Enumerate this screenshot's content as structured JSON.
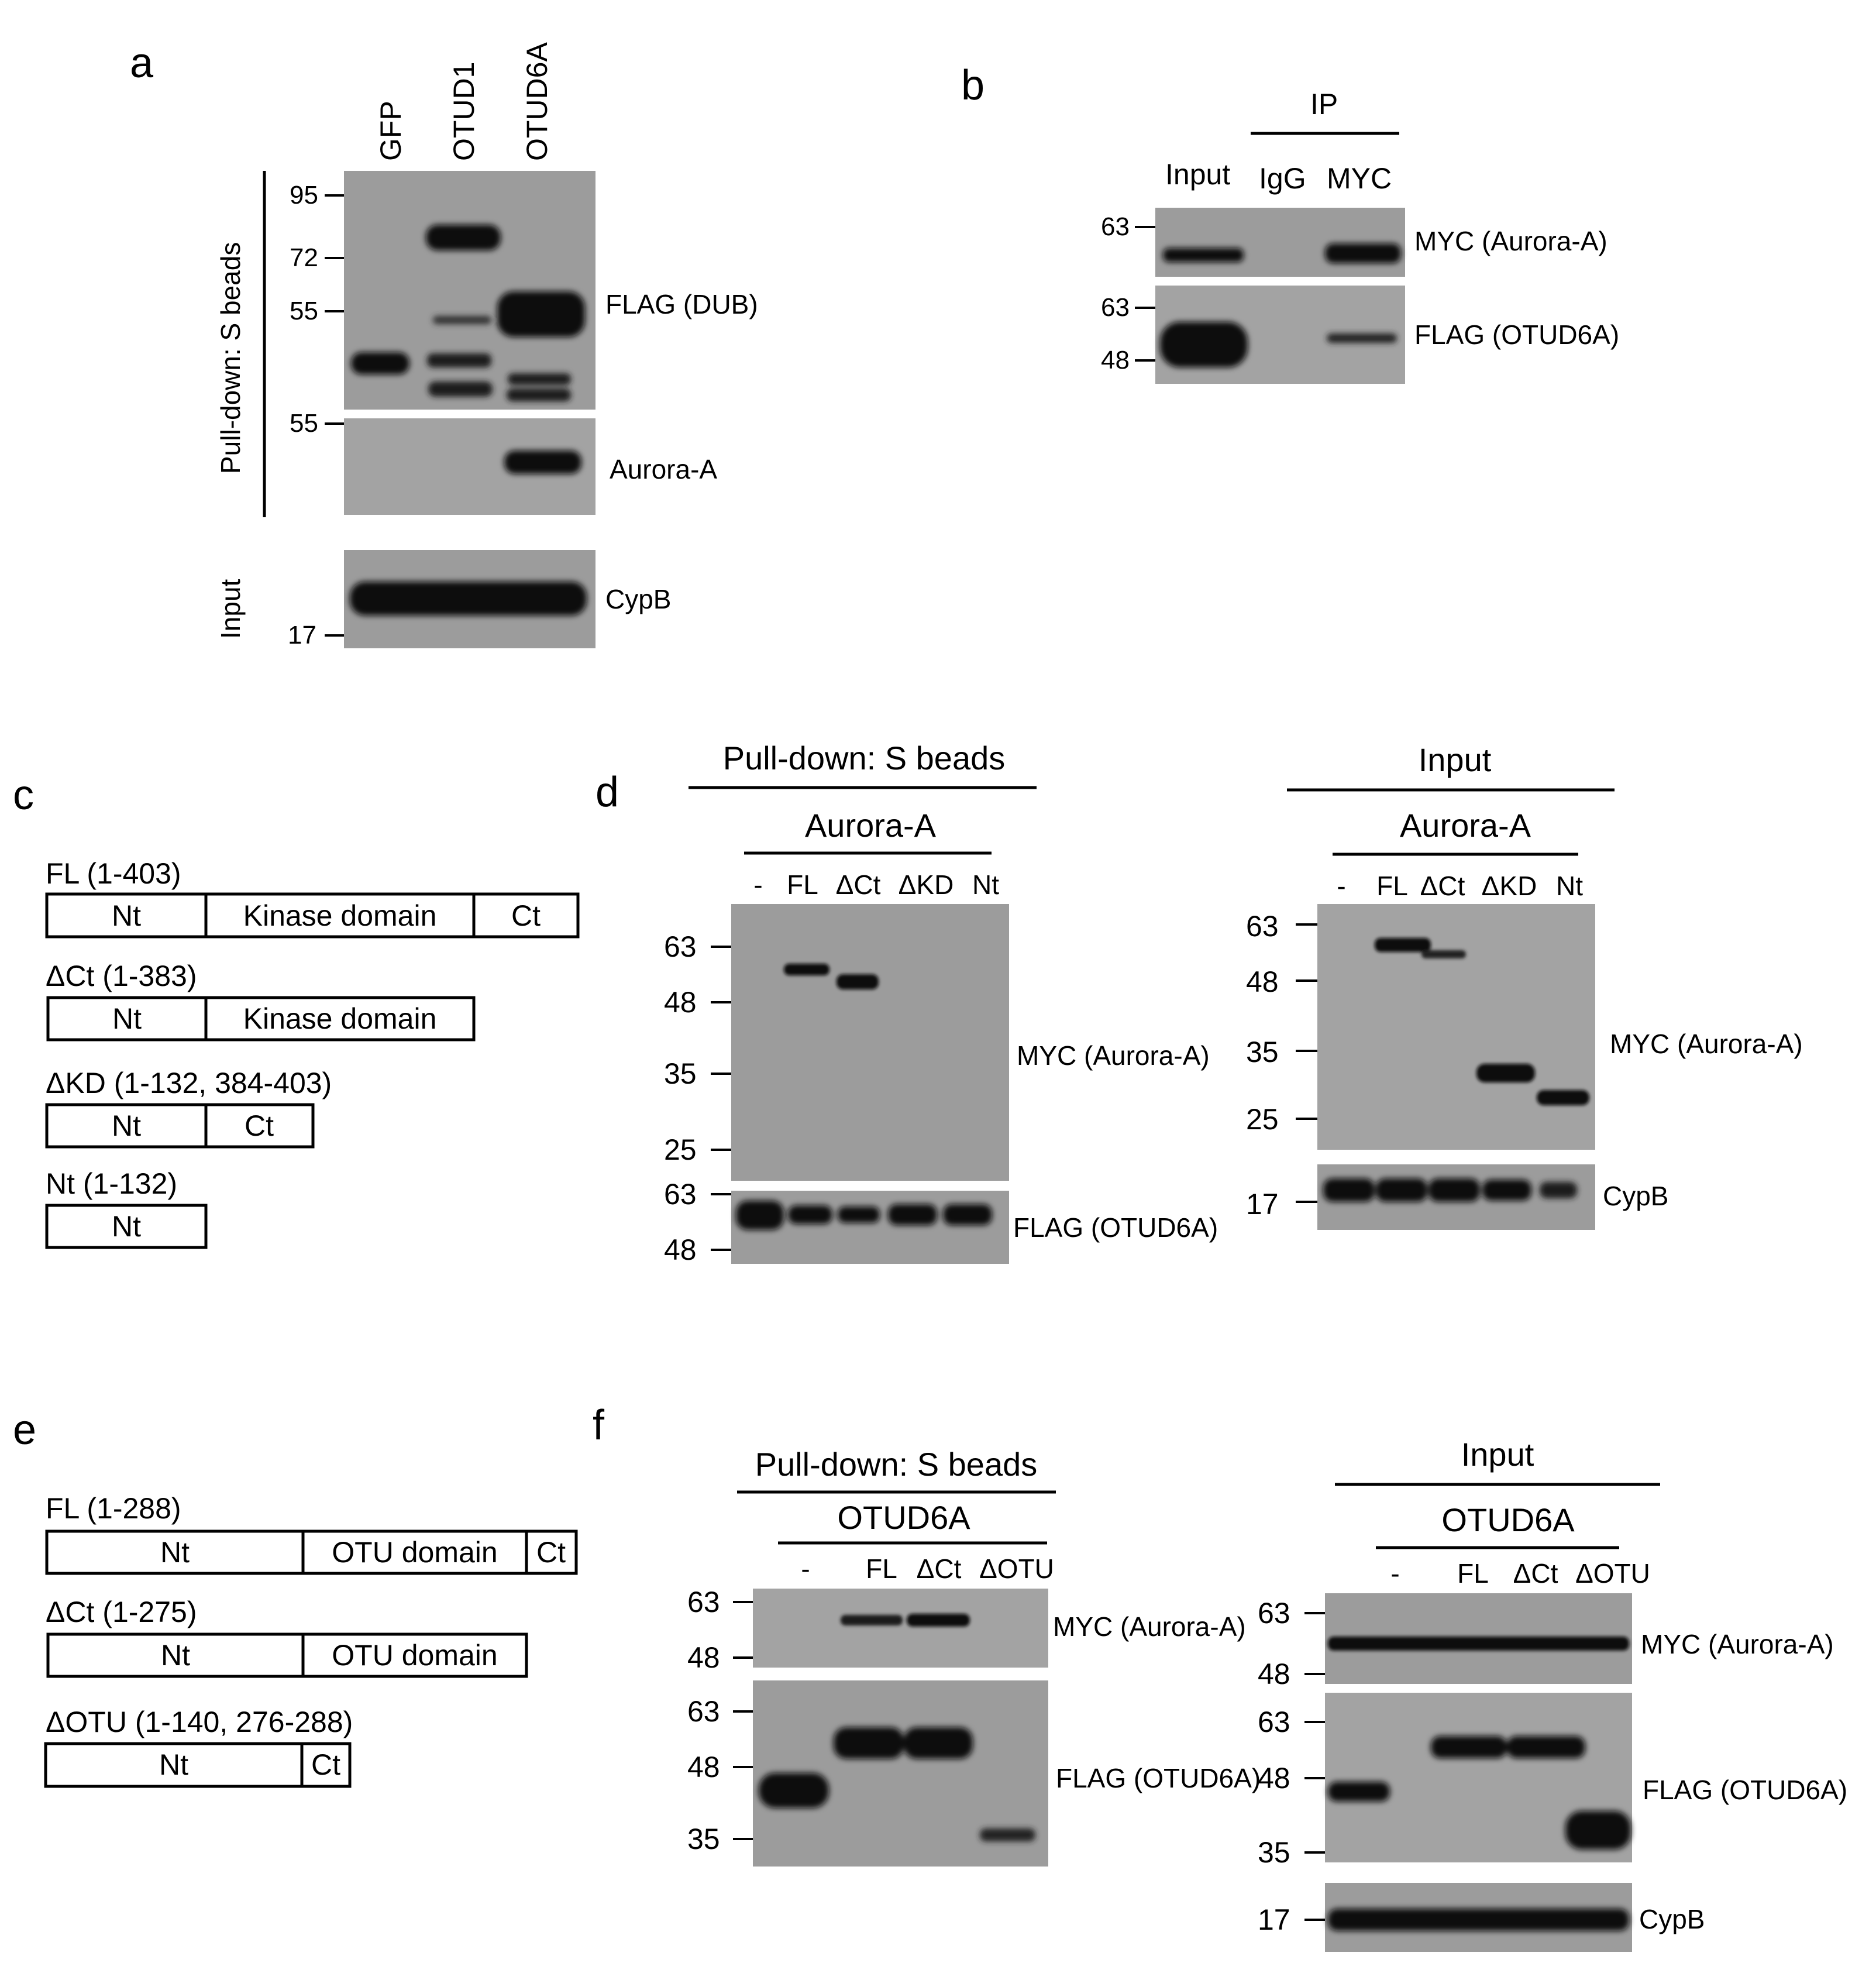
{
  "panels": {
    "a": {
      "label": "a",
      "lanes": [
        "GFP",
        "OTUD1",
        "OTUD6A"
      ],
      "side_label": "Pull-down: S beads",
      "input_label": "Input",
      "mw_top": [
        "95",
        "72",
        "55"
      ],
      "mw_mid": "55",
      "mw_bottom": "17",
      "blots": [
        "FLAG (DUB)",
        "Aurora-A",
        "CypB"
      ]
    },
    "b": {
      "label": "b",
      "ip_label": "IP",
      "lanes": [
        "Input",
        "IgG",
        "MYC"
      ],
      "mw_top": "63",
      "mw_bottom": [
        "63",
        "48"
      ],
      "blots": [
        "MYC (Aurora-A)",
        "FLAG (OTUD6A)"
      ]
    },
    "c": {
      "label": "c",
      "constructs": [
        {
          "name": "FL (1-403)",
          "segments": [
            "Nt",
            "Kinase domain",
            "Ct"
          ]
        },
        {
          "name": "ΔCt (1-383)",
          "segments": [
            "Nt",
            "Kinase domain"
          ]
        },
        {
          "name": "ΔKD (1-132, 384-403)",
          "segments": [
            "Nt",
            "Ct"
          ]
        },
        {
          "name": "Nt (1-132)",
          "segments": [
            "Nt"
          ]
        }
      ]
    },
    "d": {
      "label": "d",
      "left": {
        "header": "Pull-down: S beads",
        "subheader": "Aurora-A",
        "lanes": [
          "-",
          "FL",
          "ΔCt",
          "ΔKD",
          "Nt"
        ],
        "mw_top": [
          "63",
          "48",
          "35",
          "25"
        ],
        "mw_bottom": [
          "63",
          "48"
        ],
        "blots": [
          "MYC (Aurora-A)",
          "FLAG (OTUD6A)"
        ]
      },
      "right": {
        "header": "Input",
        "subheader": "Aurora-A",
        "lanes": [
          "-",
          "FL",
          "ΔCt",
          "ΔKD",
          "Nt"
        ],
        "mw_top": [
          "63",
          "48",
          "35",
          "25"
        ],
        "mw_bottom": "17",
        "blots": [
          "MYC (Aurora-A)",
          "CypB"
        ]
      }
    },
    "e": {
      "label": "e",
      "constructs": [
        {
          "name": "FL (1-288)",
          "segments": [
            "Nt",
            "OTU domain",
            "Ct"
          ]
        },
        {
          "name": "ΔCt (1-275)",
          "segments": [
            "Nt",
            "OTU domain"
          ]
        },
        {
          "name": "ΔOTU (1-140, 276-288)",
          "segments": [
            "Nt",
            "Ct"
          ]
        }
      ]
    },
    "f": {
      "label": "f",
      "left": {
        "header": "Pull-down: S beads",
        "subheader": "OTUD6A",
        "lanes": [
          "-",
          "FL",
          "ΔCt",
          "ΔOTU"
        ],
        "mw_top": [
          "63",
          "48"
        ],
        "mw_bottom": [
          "63",
          "48",
          "35"
        ],
        "blots": [
          "MYC (Aurora-A)",
          "FLAG (OTUD6A)"
        ]
      },
      "right": {
        "header": "Input",
        "subheader": "OTUD6A",
        "lanes": [
          "-",
          "FL",
          "ΔCt",
          "ΔOTU"
        ],
        "mw_top": [
          "63",
          "48"
        ],
        "mw_mid": [
          "63",
          "48",
          "35"
        ],
        "mw_bottom": "17",
        "blots": [
          "MYC (Aurora-A)",
          "FLAG (OTUD6A)",
          "CypB"
        ]
      }
    }
  }
}
